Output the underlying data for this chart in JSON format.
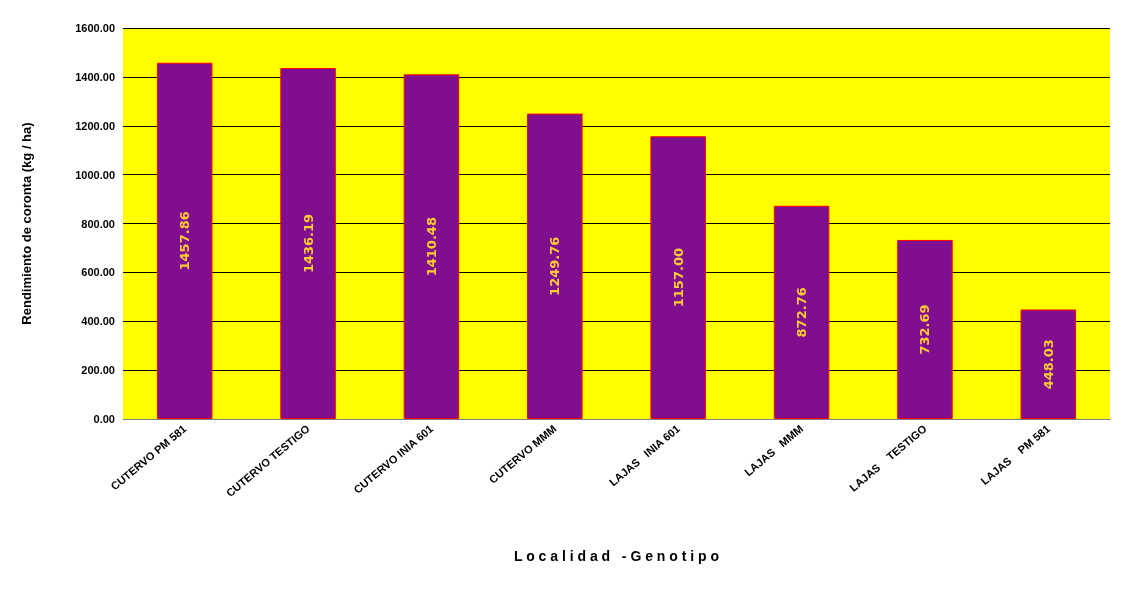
{
  "chart_data": {
    "type": "bar",
    "xlabel": "L o c a l i d a d   - G e n o t i p o",
    "ylabel": "Rendimiento de coronta (kg / ha)",
    "categories": [
      "CUTERVO PM 581",
      "CUTERVO TESTIGO",
      "CUTERVO INIA 601",
      "CUTERVO MMM",
      "LAJAS   INIA 601",
      "LAJAS   MMM",
      "LAJAS    TESTIGO",
      "LAJAS    PM 581"
    ],
    "values": [
      1457.86,
      1436.19,
      1410.48,
      1249.76,
      1157.0,
      872.76,
      732.69,
      448.03
    ],
    "value_labels": [
      "1457.86",
      "1436.19",
      "1410.48",
      "1249.76",
      "1157.00",
      "872.76",
      "732.69",
      "448.03"
    ],
    "color": "#7f0f8f",
    "ylim": [
      0,
      1600
    ],
    "yticks": [
      {
        "value": 0,
        "label": "0.00"
      },
      {
        "value": 200,
        "label": "200.00"
      },
      {
        "value": 400,
        "label": "400.00"
      },
      {
        "value": 600,
        "label": "600.00"
      },
      {
        "value": 800,
        "label": "800.00"
      },
      {
        "value": 1000,
        "label": "1000.00"
      },
      {
        "value": 1200,
        "label": "1200.00"
      },
      {
        "value": 1400,
        "label": "1400.00"
      },
      {
        "value": 1600,
        "label": "1600.00"
      }
    ],
    "grid": "y"
  }
}
